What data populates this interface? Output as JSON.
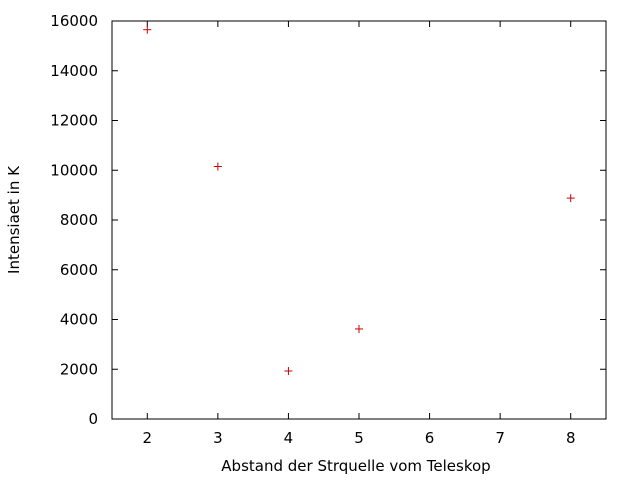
{
  "chart_data": {
    "type": "scatter",
    "title": "",
    "xlabel": "Abstand der Strquelle vom Teleskop",
    "ylabel": "Intensiaet in K",
    "xlim": [
      1.5,
      8.5
    ],
    "ylim": [
      0,
      16000
    ],
    "xticks": [
      2,
      3,
      4,
      5,
      6,
      7,
      8
    ],
    "yticks": [
      0,
      2000,
      4000,
      6000,
      8000,
      10000,
      12000,
      14000,
      16000
    ],
    "grid": false,
    "legend": "none",
    "marker": "plus",
    "color": "#cc0000",
    "series": [
      {
        "x": [
          2,
          3,
          4,
          5,
          8
        ],
        "y": [
          15650,
          10150,
          1930,
          3620,
          8880
        ]
      }
    ]
  }
}
